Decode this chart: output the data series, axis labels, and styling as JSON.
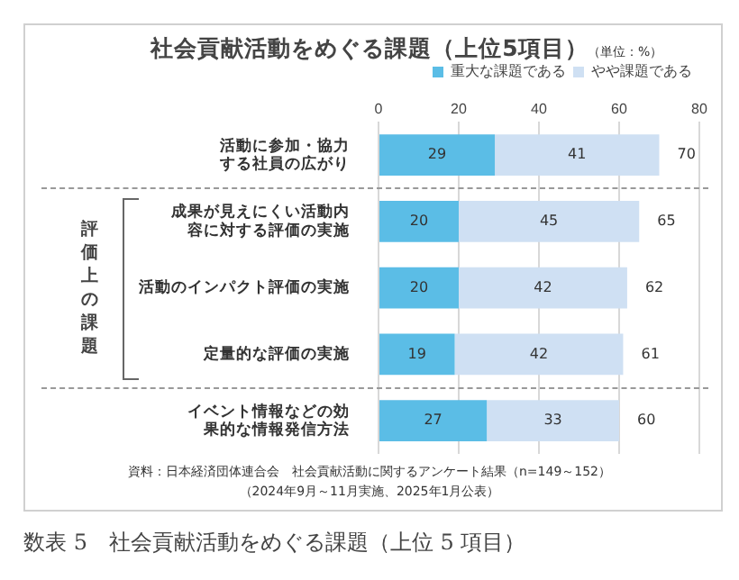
{
  "chart_data": {
    "type": "bar",
    "orientation": "horizontal",
    "stacked": true,
    "title": "社会貢献活動をめぐる課題（上位5項目）",
    "categories": [
      "活動に参加・協力する社員の広がり",
      "成果が見えにくい活動内容に対する評価の実施",
      "活動のインパクト評価の実施",
      "定量的な評価の実施",
      "イベント情報などの効果的な情報発信方法"
    ],
    "series": [
      {
        "name": "重大な課題である",
        "color": "#5bbde6",
        "values": [
          29,
          20,
          20,
          19,
          27
        ]
      },
      {
        "name": "やや課題である",
        "color": "#cfe0f3",
        "values": [
          41,
          45,
          42,
          42,
          33
        ]
      }
    ],
    "totals": [
      "70",
      "65",
      "62",
      "61",
      "60"
    ],
    "data_labels": true,
    "xlim": [
      0,
      80
    ],
    "xticks": [
      0,
      20,
      40,
      60,
      80
    ],
    "grid": "x",
    "legend": "top right",
    "annotations": [
      "（単位：%）",
      "評価上の課題",
      "資料：日本経済団体連合会　社会貢献活動に関するアンケート結果（n=149～152）",
      "（2024年9月～11月実施、2025年1月公表）",
      "数表 5　社会貢献活動をめぐる課題（上位 5 項目）"
    ]
  }
}
